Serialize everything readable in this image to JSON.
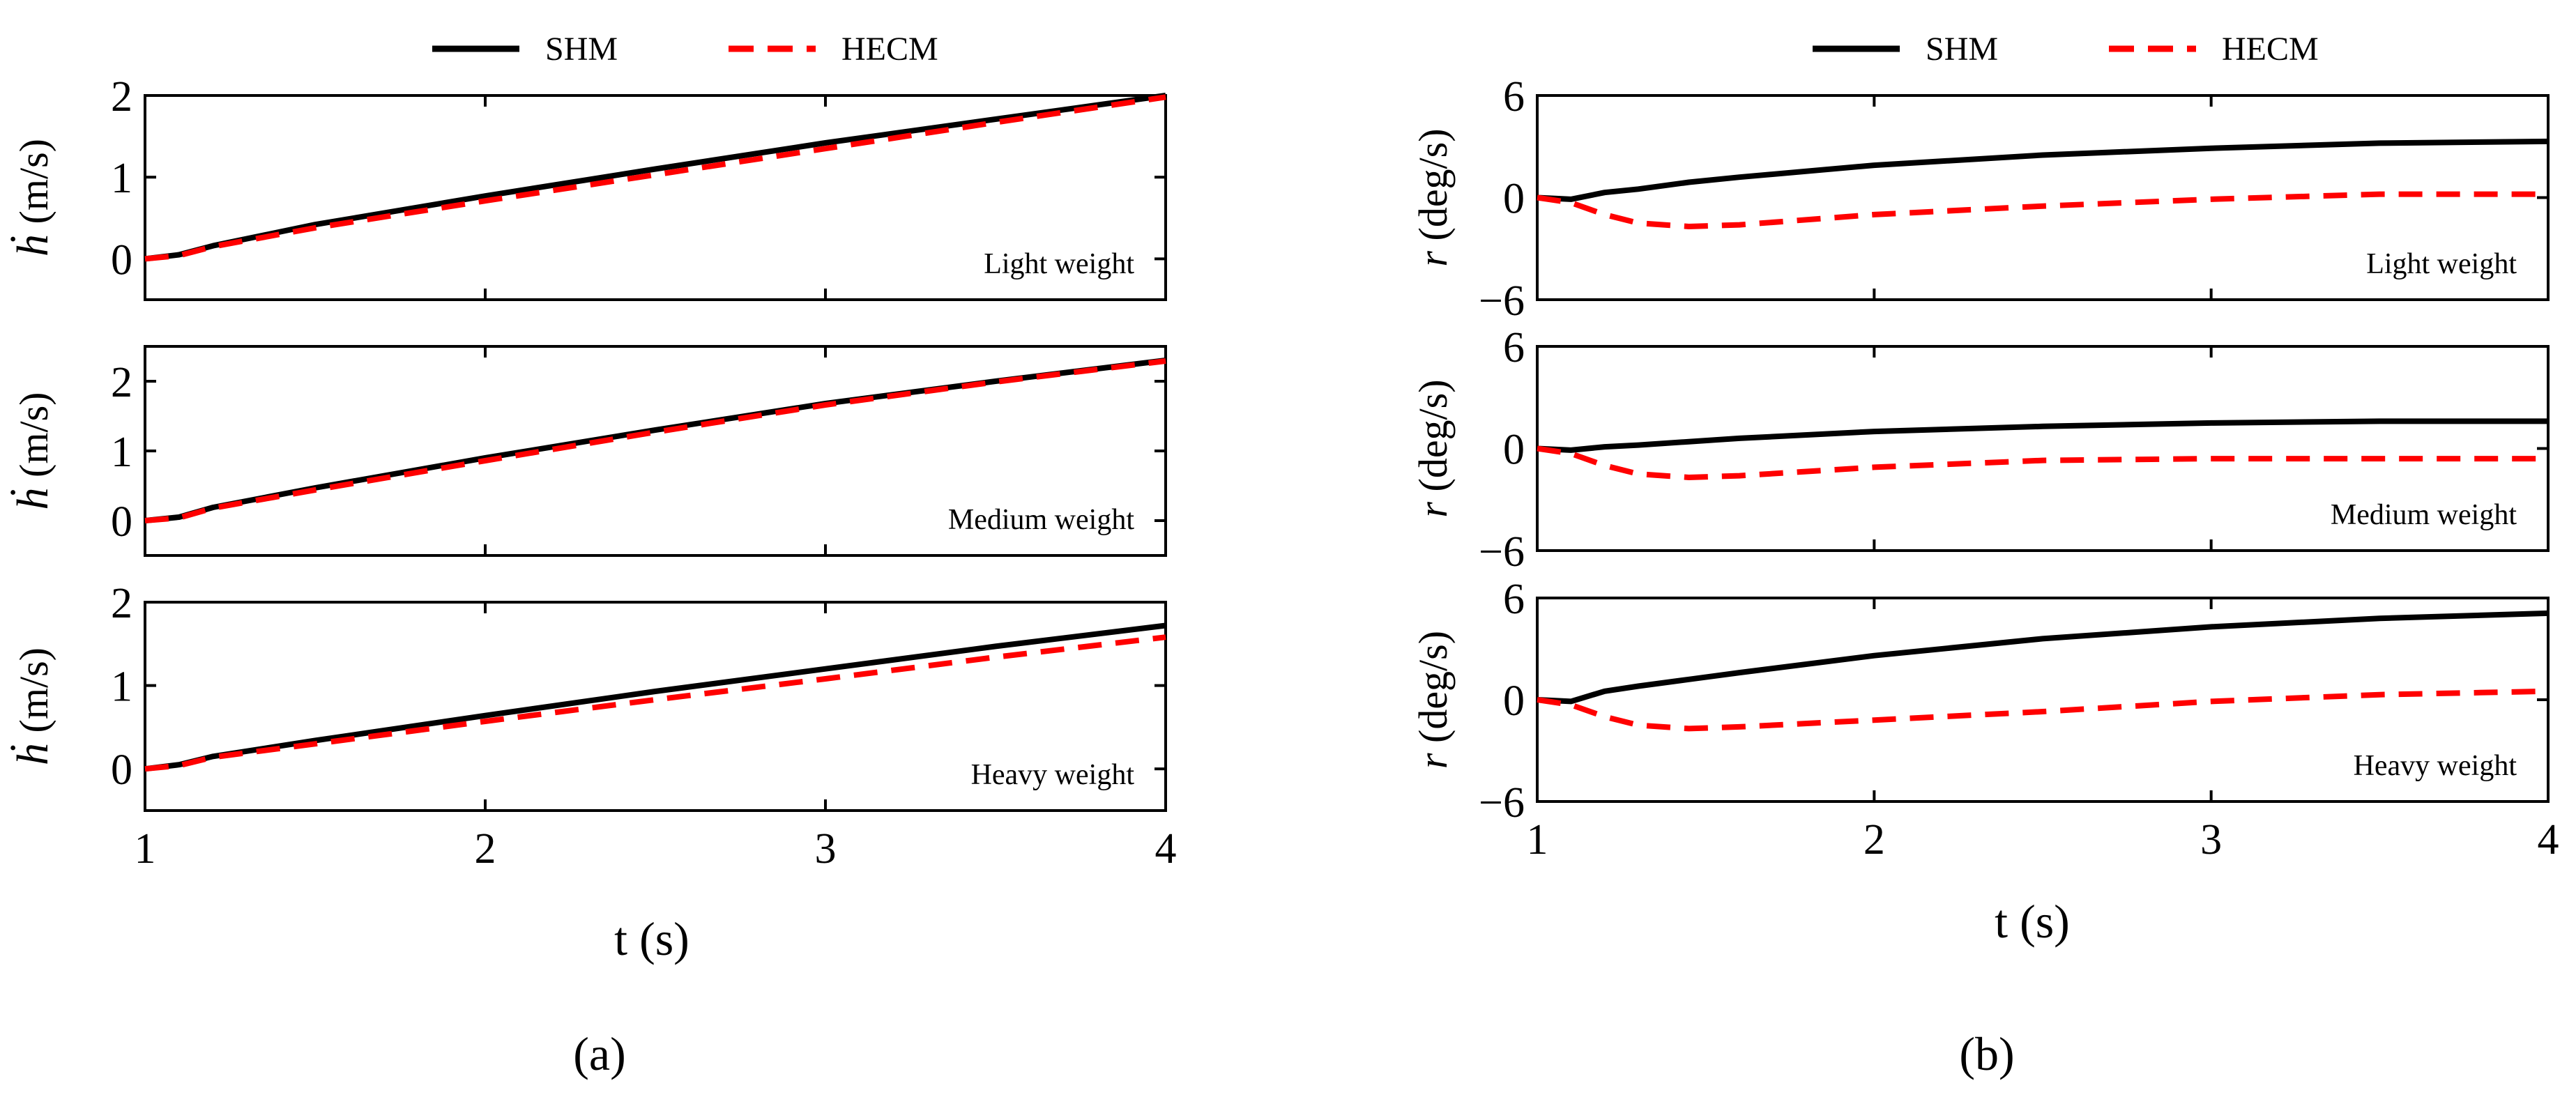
{
  "figure": {
    "legend": {
      "shm": "SHM",
      "hecm": "HECM"
    },
    "colors": {
      "shm": "#000000",
      "hecm": "#ff0000"
    },
    "xlabel": "t (s)",
    "panel_a_label": "(a)",
    "panel_b_label": "(b)",
    "panel_a_ylabel_unit": "(m/s)",
    "panel_b_ylabel_symbol": "r",
    "panel_b_ylabel_unit": "(deg/s)"
  },
  "chart_data": [
    {
      "type": "line",
      "id": "a-light",
      "panel": "a",
      "annotation": "Light weight",
      "ylabel": "ḣ (m/s)",
      "xlabel": "t (s)",
      "xlim": [
        1,
        4
      ],
      "ylim": [
        -0.5,
        2
      ],
      "xticks": [
        1,
        2,
        3,
        4
      ],
      "yticks": [
        0,
        1,
        2
      ],
      "x": [
        1,
        1.1,
        1.2,
        1.5,
        2,
        2.5,
        3,
        3.5,
        4
      ],
      "series": [
        {
          "name": "SHM",
          "values": [
            0,
            0.05,
            0.16,
            0.42,
            0.77,
            1.1,
            1.42,
            1.71,
            2.0
          ]
        },
        {
          "name": "HECM",
          "values": [
            0,
            0.04,
            0.15,
            0.38,
            0.71,
            1.03,
            1.35,
            1.67,
            1.98
          ]
        }
      ]
    },
    {
      "type": "line",
      "id": "a-medium",
      "panel": "a",
      "annotation": "Medium weight",
      "ylabel": "ḣ (m/s)",
      "xlabel": "t (s)",
      "xlim": [
        1,
        4
      ],
      "ylim": [
        -0.5,
        2.5
      ],
      "xticks": [
        1,
        2,
        3,
        4
      ],
      "yticks": [
        0,
        1,
        2
      ],
      "x": [
        1,
        1.1,
        1.2,
        1.5,
        2,
        2.5,
        3,
        3.5,
        4
      ],
      "series": [
        {
          "name": "SHM",
          "values": [
            0,
            0.05,
            0.19,
            0.47,
            0.9,
            1.3,
            1.68,
            2.0,
            2.3
          ]
        },
        {
          "name": "HECM",
          "values": [
            0,
            0.04,
            0.18,
            0.44,
            0.86,
            1.27,
            1.66,
            1.99,
            2.29
          ]
        }
      ]
    },
    {
      "type": "line",
      "id": "a-heavy",
      "panel": "a",
      "annotation": "Heavy weight",
      "ylabel": "ḣ (m/s)",
      "xlabel": "t (s)",
      "xlim": [
        1,
        4
      ],
      "ylim": [
        -0.5,
        2
      ],
      "xticks": [
        1,
        2,
        3,
        4
      ],
      "yticks": [
        0,
        1,
        2
      ],
      "x": [
        1,
        1.1,
        1.2,
        1.5,
        2,
        2.5,
        3,
        3.5,
        4
      ],
      "series": [
        {
          "name": "SHM",
          "values": [
            0,
            0.05,
            0.15,
            0.34,
            0.64,
            0.93,
            1.2,
            1.47,
            1.72
          ]
        },
        {
          "name": "HECM",
          "values": [
            0,
            0.04,
            0.14,
            0.3,
            0.57,
            0.83,
            1.08,
            1.34,
            1.58
          ]
        }
      ]
    },
    {
      "type": "line",
      "id": "b-light",
      "panel": "b",
      "annotation": "Light weight",
      "ylabel": "r (deg/s)",
      "xlabel": "t (s)",
      "xlim": [
        1,
        4
      ],
      "ylim": [
        -6,
        6
      ],
      "xticks": [
        1,
        2,
        3,
        4
      ],
      "yticks": [
        -6,
        0,
        6
      ],
      "x": [
        1,
        1.1,
        1.2,
        1.3,
        1.45,
        1.6,
        2,
        2.5,
        3,
        3.5,
        4
      ],
      "series": [
        {
          "name": "SHM",
          "values": [
            0,
            -0.1,
            0.3,
            0.5,
            0.9,
            1.2,
            1.9,
            2.5,
            2.9,
            3.2,
            3.3
          ]
        },
        {
          "name": "HECM",
          "values": [
            0,
            -0.3,
            -1.0,
            -1.5,
            -1.7,
            -1.6,
            -1.0,
            -0.5,
            -0.1,
            0.2,
            0.2
          ]
        }
      ]
    },
    {
      "type": "line",
      "id": "b-medium",
      "panel": "b",
      "annotation": "Medium weight",
      "ylabel": "r (deg/s)",
      "xlabel": "t (s)",
      "xlim": [
        1,
        4
      ],
      "ylim": [
        -6,
        6
      ],
      "xticks": [
        1,
        2,
        3,
        4
      ],
      "yticks": [
        -6,
        0,
        6
      ],
      "x": [
        1,
        1.1,
        1.2,
        1.3,
        1.45,
        1.6,
        2,
        2.5,
        3,
        3.5,
        4
      ],
      "series": [
        {
          "name": "SHM",
          "values": [
            0,
            -0.1,
            0.1,
            0.2,
            0.4,
            0.6,
            1.0,
            1.3,
            1.5,
            1.6,
            1.6
          ]
        },
        {
          "name": "HECM",
          "values": [
            0,
            -0.3,
            -1.0,
            -1.5,
            -1.7,
            -1.6,
            -1.1,
            -0.7,
            -0.6,
            -0.6,
            -0.6
          ]
        }
      ]
    },
    {
      "type": "line",
      "id": "b-heavy",
      "panel": "b",
      "annotation": "Heavy weight",
      "ylabel": "r (deg/s)",
      "xlabel": "t (s)",
      "xlim": [
        1,
        4
      ],
      "ylim": [
        -6,
        6
      ],
      "xticks": [
        1,
        2,
        3,
        4
      ],
      "yticks": [
        -6,
        0,
        6
      ],
      "x": [
        1,
        1.1,
        1.2,
        1.3,
        1.45,
        1.6,
        2,
        2.5,
        3,
        3.5,
        4
      ],
      "series": [
        {
          "name": "SHM",
          "values": [
            0,
            -0.1,
            0.5,
            0.8,
            1.2,
            1.6,
            2.6,
            3.6,
            4.3,
            4.8,
            5.1
          ]
        },
        {
          "name": "HECM",
          "values": [
            0,
            -0.3,
            -1.0,
            -1.5,
            -1.7,
            -1.6,
            -1.2,
            -0.7,
            -0.1,
            0.3,
            0.5
          ]
        }
      ]
    }
  ]
}
